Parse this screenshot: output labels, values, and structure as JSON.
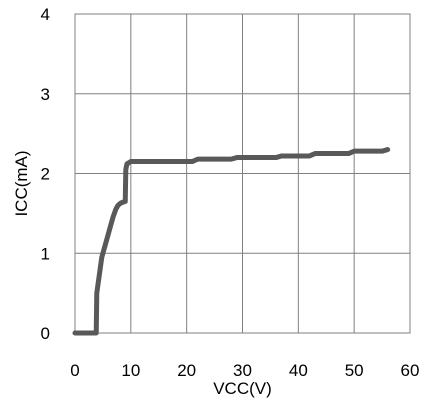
{
  "chart_data": {
    "type": "line",
    "title": "",
    "xlabel": "VCC(V)",
    "ylabel": "ICC(mA)",
    "xlim": [
      0,
      60
    ],
    "ylim": [
      0,
      4
    ],
    "xticks": [
      0,
      10,
      20,
      30,
      40,
      50,
      60
    ],
    "yticks": [
      0,
      1,
      2,
      3,
      4
    ],
    "grid": true,
    "legend": "none",
    "series": [
      {
        "color": "#595959",
        "x": [
          0,
          3.8,
          3.9,
          4.2,
          4.5,
          4.8,
          5.2,
          5.6,
          6.0,
          6.4,
          6.8,
          7.3,
          7.7,
          8.2,
          9.0,
          9.1,
          9.3,
          10,
          21,
          22,
          28,
          29,
          36,
          37,
          42,
          43,
          49,
          50,
          55,
          56
        ],
        "y": [
          0,
          0,
          0.5,
          0.65,
          0.8,
          0.95,
          1.05,
          1.15,
          1.25,
          1.35,
          1.45,
          1.55,
          1.6,
          1.63,
          1.65,
          2.05,
          2.12,
          2.15,
          2.15,
          2.18,
          2.18,
          2.2,
          2.2,
          2.22,
          2.22,
          2.25,
          2.25,
          2.28,
          2.28,
          2.3
        ]
      }
    ]
  }
}
